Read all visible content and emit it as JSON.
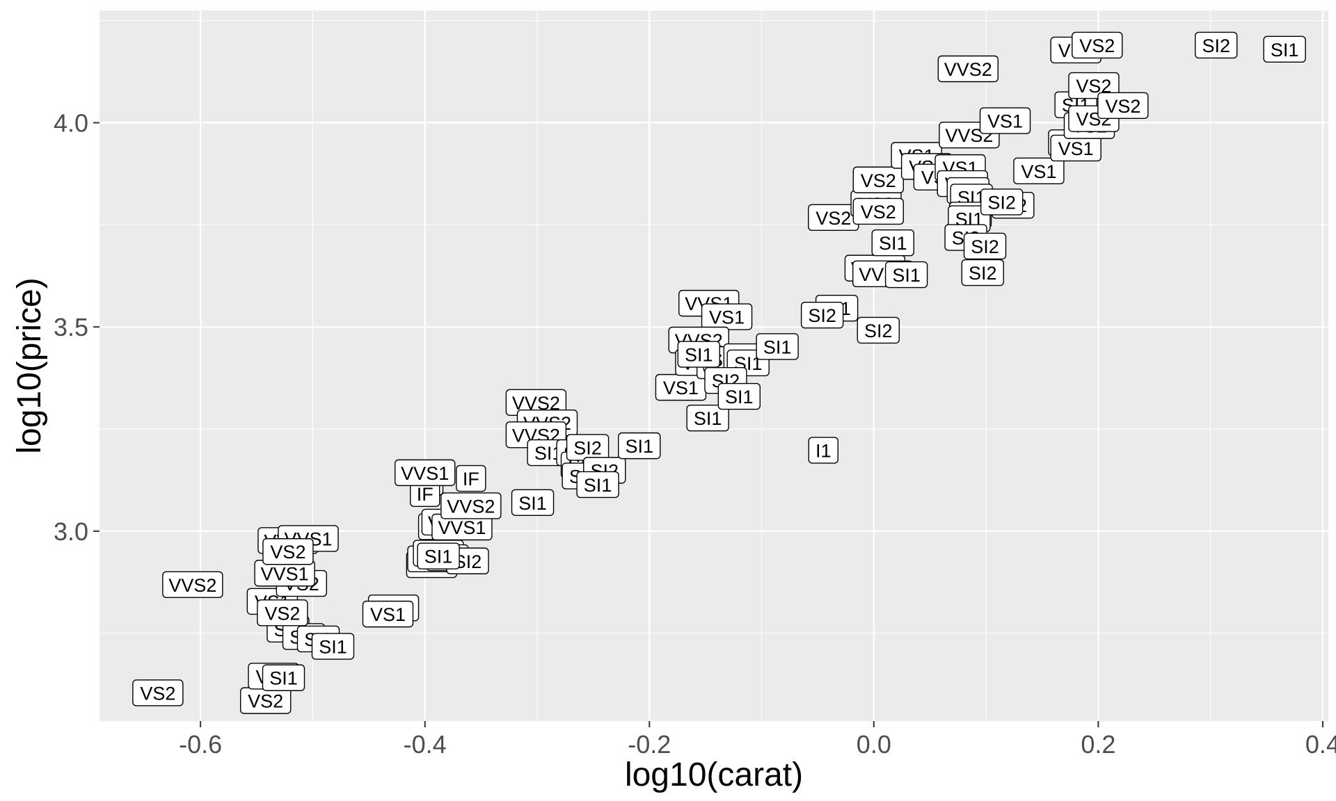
{
  "chart_data": {
    "type": "scatter",
    "xlabel": "log10(carat)",
    "ylabel": "log10(price)",
    "xlim": [
      -0.69,
      0.405
    ],
    "ylim": [
      2.535,
      4.275
    ],
    "x_ticks": [
      -0.6,
      -0.4,
      -0.2,
      0.0,
      0.2,
      0.4
    ],
    "x_tick_labels": [
      "-0.6",
      "-0.4",
      "-0.2",
      "0.0",
      "0.2",
      "0.4"
    ],
    "y_ticks": [
      3.0,
      3.5,
      4.0
    ],
    "y_tick_labels": [
      "3.0",
      "3.5",
      "4.0"
    ],
    "grid": true,
    "colors": {
      "panel": "#EBEBEB",
      "grid": "#FFFFFF",
      "label_fill": "#FFFFFF",
      "label_border": "#000000"
    },
    "points": [
      {
        "x": -0.638,
        "y": 2.604,
        "label": "VS2"
      },
      {
        "x": -0.607,
        "y": 2.869,
        "label": "VVS2"
      },
      {
        "x": -0.542,
        "y": 2.585,
        "label": "VS2"
      },
      {
        "x": -0.535,
        "y": 2.645,
        "label": "VS2"
      },
      {
        "x": -0.526,
        "y": 2.641,
        "label": "SI1"
      },
      {
        "x": -0.536,
        "y": 2.828,
        "label": "VS1"
      },
      {
        "x": -0.522,
        "y": 2.76,
        "label": "SI1"
      },
      {
        "x": -0.508,
        "y": 2.742,
        "label": "SI2"
      },
      {
        "x": -0.495,
        "y": 2.736,
        "label": "SI2"
      },
      {
        "x": -0.482,
        "y": 2.718,
        "label": "SI1"
      },
      {
        "x": -0.51,
        "y": 2.872,
        "label": "VS2"
      },
      {
        "x": -0.527,
        "y": 2.8,
        "label": "VS2"
      },
      {
        "x": -0.525,
        "y": 2.897,
        "label": "VVS1"
      },
      {
        "x": -0.522,
        "y": 2.977,
        "label": "VVS1"
      },
      {
        "x": -0.504,
        "y": 2.982,
        "label": "VVS1"
      },
      {
        "x": -0.522,
        "y": 2.95,
        "label": "VS2"
      },
      {
        "x": -0.428,
        "y": 2.812,
        "label": "VS1"
      },
      {
        "x": -0.433,
        "y": 2.797,
        "label": "VS1"
      },
      {
        "x": -0.394,
        "y": 2.918,
        "label": "VS1"
      },
      {
        "x": -0.393,
        "y": 2.932,
        "label": "VS1"
      },
      {
        "x": -0.388,
        "y": 2.946,
        "label": "VS1"
      },
      {
        "x": -0.38,
        "y": 2.935,
        "label": "SI2"
      },
      {
        "x": -0.362,
        "y": 2.927,
        "label": "SI2"
      },
      {
        "x": -0.388,
        "y": 2.939,
        "label": "SI1"
      },
      {
        "x": -0.379,
        "y": 3.011,
        "label": "VVS1"
      },
      {
        "x": -0.376,
        "y": 3.022,
        "label": "VVS1"
      },
      {
        "x": -0.367,
        "y": 3.01,
        "label": "VVS1"
      },
      {
        "x": -0.359,
        "y": 3.062,
        "label": "VVS2"
      },
      {
        "x": -0.397,
        "y": 3.12,
        "label": "IF"
      },
      {
        "x": -0.4,
        "y": 3.092,
        "label": "IF"
      },
      {
        "x": -0.359,
        "y": 3.129,
        "label": "IF"
      },
      {
        "x": -0.4,
        "y": 3.143,
        "label": "VVS1"
      },
      {
        "x": -0.304,
        "y": 3.07,
        "label": "SI1"
      },
      {
        "x": -0.301,
        "y": 3.315,
        "label": "VVS2"
      },
      {
        "x": -0.291,
        "y": 3.265,
        "label": "VVS2"
      },
      {
        "x": -0.301,
        "y": 3.236,
        "label": "VVS2"
      },
      {
        "x": -0.29,
        "y": 3.192,
        "label": "SI1"
      },
      {
        "x": -0.264,
        "y": 3.192,
        "label": "SI2"
      },
      {
        "x": -0.26,
        "y": 3.162,
        "label": "SI1"
      },
      {
        "x": -0.259,
        "y": 3.135,
        "label": "SI1"
      },
      {
        "x": -0.255,
        "y": 3.205,
        "label": "SI2"
      },
      {
        "x": -0.24,
        "y": 3.149,
        "label": "SI2"
      },
      {
        "x": -0.246,
        "y": 3.114,
        "label": "SI1"
      },
      {
        "x": -0.209,
        "y": 3.209,
        "label": "SI1"
      },
      {
        "x": -0.148,
        "y": 3.277,
        "label": "SI1"
      },
      {
        "x": -0.172,
        "y": 3.352,
        "label": "VS1"
      },
      {
        "x": -0.147,
        "y": 3.558,
        "label": "VVS1"
      },
      {
        "x": -0.131,
        "y": 3.525,
        "label": "VS1"
      },
      {
        "x": -0.156,
        "y": 3.468,
        "label": "VVS2"
      },
      {
        "x": -0.15,
        "y": 3.413,
        "label": "VVS2"
      },
      {
        "x": -0.139,
        "y": 3.405,
        "label": "SI1"
      },
      {
        "x": -0.133,
        "y": 3.42,
        "label": "SI1"
      },
      {
        "x": -0.115,
        "y": 3.427,
        "label": "SI1"
      },
      {
        "x": -0.112,
        "y": 3.412,
        "label": "SI1"
      },
      {
        "x": -0.156,
        "y": 3.433,
        "label": "SI1"
      },
      {
        "x": -0.132,
        "y": 3.369,
        "label": "SI2"
      },
      {
        "x": -0.12,
        "y": 3.33,
        "label": "SI1"
      },
      {
        "x": -0.086,
        "y": 3.452,
        "label": "SI1"
      },
      {
        "x": -0.033,
        "y": 3.546,
        "label": "SI1"
      },
      {
        "x": -0.046,
        "y": 3.529,
        "label": "SI2"
      },
      {
        "x": -0.045,
        "y": 3.198,
        "label": "I1"
      },
      {
        "x": 0.004,
        "y": 3.492,
        "label": "SI2"
      },
      {
        "x": -0.036,
        "y": 3.768,
        "label": "VS2"
      },
      {
        "x": 0.002,
        "y": 3.802,
        "label": "VS2"
      },
      {
        "x": 0.004,
        "y": 3.783,
        "label": "VS2"
      },
      {
        "x": 0.004,
        "y": 3.86,
        "label": "VS2"
      },
      {
        "x": 0.001,
        "y": 3.644,
        "label": "VVS2"
      },
      {
        "x": 0.008,
        "y": 3.63,
        "label": "VVS2"
      },
      {
        "x": 0.017,
        "y": 3.706,
        "label": "SI1"
      },
      {
        "x": 0.029,
        "y": 3.628,
        "label": "SI1"
      },
      {
        "x": 0.038,
        "y": 3.92,
        "label": "VS1"
      },
      {
        "x": 0.047,
        "y": 3.893,
        "label": "VS2"
      },
      {
        "x": 0.058,
        "y": 3.867,
        "label": "VS1"
      },
      {
        "x": 0.077,
        "y": 3.89,
        "label": "VS1"
      },
      {
        "x": 0.079,
        "y": 3.851,
        "label": "VS1"
      },
      {
        "x": 0.084,
        "y": 3.834,
        "label": "SI1"
      },
      {
        "x": 0.087,
        "y": 3.818,
        "label": "SI1"
      },
      {
        "x": 0.086,
        "y": 3.774,
        "label": "SI1"
      },
      {
        "x": 0.085,
        "y": 3.765,
        "label": "SI1"
      },
      {
        "x": 0.082,
        "y": 3.719,
        "label": "SI2"
      },
      {
        "x": 0.099,
        "y": 3.698,
        "label": "SI2"
      },
      {
        "x": 0.097,
        "y": 3.633,
        "label": "SI2"
      },
      {
        "x": 0.124,
        "y": 3.798,
        "label": "SI2"
      },
      {
        "x": 0.114,
        "y": 3.806,
        "label": "SI2"
      },
      {
        "x": 0.085,
        "y": 3.97,
        "label": "VVS2"
      },
      {
        "x": 0.084,
        "y": 4.132,
        "label": "VVS2"
      },
      {
        "x": 0.117,
        "y": 4.005,
        "label": "VS1"
      },
      {
        "x": 0.147,
        "y": 3.882,
        "label": "VS1"
      },
      {
        "x": 0.178,
        "y": 3.951,
        "label": "VS1"
      },
      {
        "x": 0.18,
        "y": 3.938,
        "label": "VS1"
      },
      {
        "x": 0.18,
        "y": 4.044,
        "label": "SI1"
      },
      {
        "x": 0.192,
        "y": 3.993,
        "label": "VS2"
      },
      {
        "x": 0.196,
        "y": 4.01,
        "label": "VS2"
      },
      {
        "x": 0.196,
        "y": 4.091,
        "label": "VS2"
      },
      {
        "x": 0.222,
        "y": 4.042,
        "label": "VS2"
      },
      {
        "x": 0.18,
        "y": 4.178,
        "label": "VS2"
      },
      {
        "x": 0.199,
        "y": 4.19,
        "label": "VS2"
      },
      {
        "x": 0.305,
        "y": 4.19,
        "label": "SI2"
      },
      {
        "x": 0.366,
        "y": 4.18,
        "label": "SI1"
      }
    ]
  }
}
